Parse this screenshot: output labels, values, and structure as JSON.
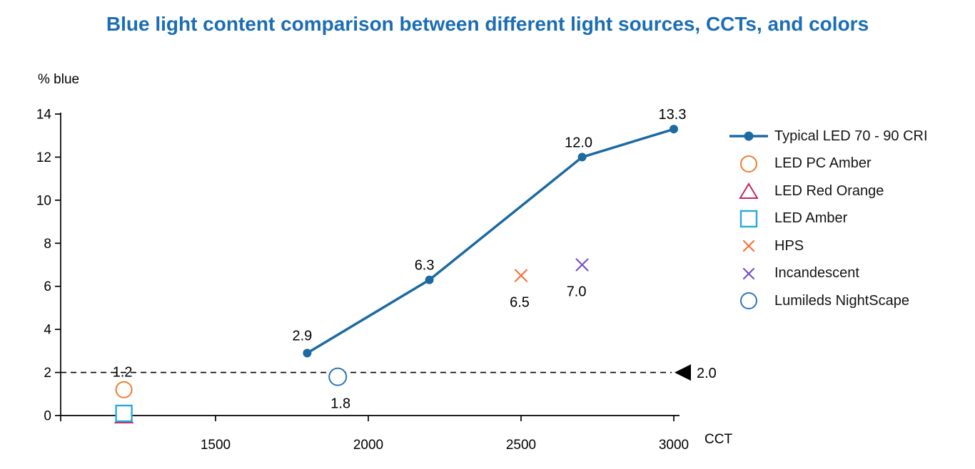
{
  "title": "Blue light content comparison between different light sources, CCTs, and colors",
  "title_color": "#1b6db4",
  "chart_data": {
    "type": "scatter",
    "title": "Blue light content comparison between different light sources, CCTs, and colors",
    "xlabel": "CCT",
    "ylabel": "% blue",
    "xlim": [
      1000,
      3040
    ],
    "ylim": [
      0,
      14
    ],
    "x_ticks": [
      1500,
      2000,
      2500,
      3000
    ],
    "y_ticks": [
      0,
      2,
      4,
      6,
      8,
      10,
      12,
      14
    ],
    "grid": false,
    "legend_position": "right",
    "axis_color": "#000000",
    "reference_line": {
      "y": 2.0,
      "label": "2.0",
      "style": "dashed",
      "color": "#000000",
      "arrow": "left-triangle"
    },
    "series": [
      {
        "name": "Typical LED 70 - 90 CRI",
        "type": "line",
        "marker": "filled-circle",
        "color": "#1b6aa2",
        "size": 6,
        "line_width": 3.5,
        "points": [
          {
            "x": 1800,
            "y": 2.9,
            "label": "2.9",
            "label_pos": "above",
            "ldx": -7,
            "loff": 18
          },
          {
            "x": 2200,
            "y": 6.3,
            "label": "6.3",
            "label_pos": "above",
            "ldx": -7
          },
          {
            "x": 2700,
            "y": 12.0,
            "label": "12.0",
            "label_pos": "above",
            "ldx": -5
          },
          {
            "x": 3000,
            "y": 13.3,
            "label": "13.3",
            "label_pos": "above",
            "ldx": -2
          }
        ]
      },
      {
        "name": "LED PC Amber",
        "type": "scatter",
        "marker": "circle",
        "color": "#ed7d31",
        "size": 11,
        "points": [
          {
            "x": 1200,
            "y": 1.2,
            "label": "1.2",
            "label_pos": "above",
            "ldx": -2,
            "loff": 18
          }
        ]
      },
      {
        "name": "LED Red Orange",
        "type": "scatter",
        "marker": "triangle",
        "color": "#c9245d",
        "size": 10,
        "points": [
          {
            "x": 1200,
            "y": 0.0
          }
        ]
      },
      {
        "name": "LED Amber",
        "type": "scatter",
        "marker": "square",
        "color": "#29a8e0",
        "size": 11,
        "points": [
          {
            "x": 1200,
            "y": 0.1
          }
        ]
      },
      {
        "name": "HPS",
        "type": "scatter",
        "marker": "x",
        "color": "#f4743b",
        "size": 8,
        "points": [
          {
            "x": 2500,
            "y": 6.5,
            "label": "6.5",
            "label_pos": "below",
            "ldx": -2
          }
        ]
      },
      {
        "name": "Incandescent",
        "type": "scatter",
        "marker": "x",
        "color": "#7a52c7",
        "size": 8,
        "points": [
          {
            "x": 2700,
            "y": 7.0,
            "label": "7.0",
            "label_pos": "below",
            "ldx": -8
          }
        ]
      },
      {
        "name": "Lumileds NightScape",
        "type": "scatter",
        "marker": "circle",
        "color": "#2e75b6",
        "size": 12,
        "points": [
          {
            "x": 1900,
            "y": 1.8,
            "label": "1.8",
            "label_pos": "below",
            "ldx": 4
          }
        ]
      }
    ]
  }
}
